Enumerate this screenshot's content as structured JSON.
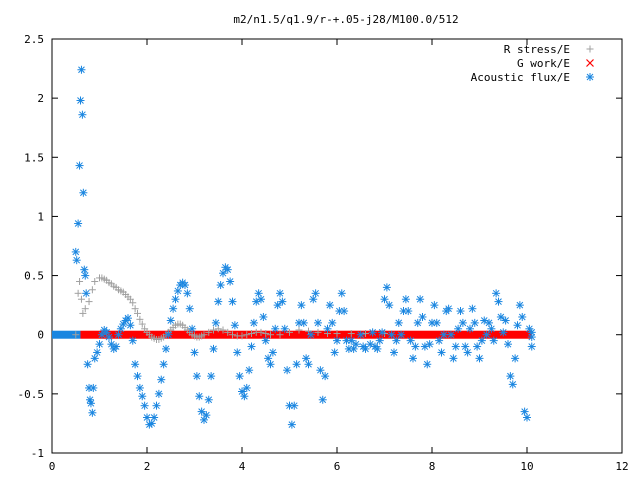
{
  "chart_data": {
    "type": "scatter",
    "title": "m2/n1.5/q1.9/r-+.05-j28/M100.0/512",
    "xlim": [
      0,
      12
    ],
    "ylim": [
      -1,
      2.5
    ],
    "x_ticks": [
      "0",
      "2",
      "4",
      "6",
      "8",
      "10",
      "12"
    ],
    "y_ticks": [
      "-1",
      "-0.5",
      "0",
      "0.5",
      "1",
      "1.5",
      "2",
      "2.5"
    ],
    "x_tick_values": [
      0,
      2,
      4,
      6,
      8,
      10,
      12
    ],
    "y_tick_values": [
      -1,
      -0.5,
      0,
      0.5,
      1,
      1.5,
      2,
      2.5
    ],
    "grid": false,
    "legend_position": "top-right",
    "series": [
      {
        "name": "R stress/E",
        "marker": "plus",
        "color": "#a0a0a0",
        "points": [
          [
            0.5,
            0.0
          ],
          [
            0.55,
            0.35
          ],
          [
            0.58,
            0.45
          ],
          [
            0.62,
            0.3
          ],
          [
            0.65,
            0.18
          ],
          [
            0.7,
            0.22
          ],
          [
            0.78,
            0.28
          ],
          [
            0.85,
            0.38
          ],
          [
            0.9,
            0.45
          ],
          [
            1.0,
            0.48
          ],
          [
            1.05,
            0.48
          ],
          [
            1.1,
            0.47
          ],
          [
            1.15,
            0.46
          ],
          [
            1.2,
            0.44
          ],
          [
            1.25,
            0.43
          ],
          [
            1.3,
            0.41
          ],
          [
            1.35,
            0.4
          ],
          [
            1.4,
            0.38
          ],
          [
            1.45,
            0.37
          ],
          [
            1.5,
            0.36
          ],
          [
            1.55,
            0.34
          ],
          [
            1.6,
            0.32
          ],
          [
            1.65,
            0.3
          ],
          [
            1.7,
            0.27
          ],
          [
            1.75,
            0.22
          ],
          [
            1.8,
            0.18
          ],
          [
            1.85,
            0.13
          ],
          [
            1.9,
            0.09
          ],
          [
            1.95,
            0.05
          ],
          [
            2.0,
            0.02
          ],
          [
            2.05,
            0.0
          ],
          [
            2.1,
            -0.02
          ],
          [
            2.15,
            -0.03
          ],
          [
            2.2,
            -0.04
          ],
          [
            2.25,
            -0.04
          ],
          [
            2.3,
            -0.03
          ],
          [
            2.35,
            -0.02
          ],
          [
            2.4,
            0.0
          ],
          [
            2.45,
            0.02
          ],
          [
            2.5,
            0.04
          ],
          [
            2.55,
            0.06
          ],
          [
            2.6,
            0.08
          ],
          [
            2.65,
            0.09
          ],
          [
            2.7,
            0.09
          ],
          [
            2.75,
            0.08
          ],
          [
            2.8,
            0.06
          ],
          [
            2.85,
            0.04
          ],
          [
            2.9,
            0.02
          ],
          [
            2.95,
            0.0
          ],
          [
            3.0,
            -0.01
          ],
          [
            3.05,
            -0.02
          ],
          [
            3.1,
            -0.02
          ],
          [
            3.15,
            -0.01
          ],
          [
            3.2,
            0.0
          ],
          [
            3.3,
            0.02
          ],
          [
            3.4,
            0.04
          ],
          [
            3.5,
            0.05
          ],
          [
            3.6,
            0.04
          ],
          [
            3.7,
            0.02
          ],
          [
            3.8,
            0.0
          ],
          [
            3.9,
            -0.01
          ],
          [
            4.0,
            -0.01
          ],
          [
            4.1,
            0.0
          ],
          [
            4.2,
            0.01
          ],
          [
            4.3,
            0.02
          ],
          [
            4.4,
            0.02
          ],
          [
            4.5,
            0.01
          ],
          [
            4.6,
            0.0
          ],
          [
            4.8,
            0.0
          ],
          [
            5.0,
            0.02
          ],
          [
            5.2,
            0.04
          ],
          [
            5.4,
            0.03
          ],
          [
            5.6,
            0.02
          ],
          [
            5.8,
            0.01
          ],
          [
            6.0,
            0.01
          ],
          [
            6.3,
            0.01
          ],
          [
            6.6,
            0.01
          ],
          [
            7.0,
            0.01
          ]
        ]
      },
      {
        "name": "G work/E",
        "marker": "cross",
        "color": "#ff0000",
        "points": []
      },
      {
        "name": "Acoustic flux/E",
        "marker": "star",
        "color": "#1a86e0",
        "points": [
          [
            0.5,
            0.7
          ],
          [
            0.52,
            0.63
          ],
          [
            0.55,
            0.94
          ],
          [
            0.58,
            1.43
          ],
          [
            0.6,
            1.98
          ],
          [
            0.62,
            2.24
          ],
          [
            0.64,
            1.86
          ],
          [
            0.66,
            1.2
          ],
          [
            0.68,
            0.55
          ],
          [
            0.7,
            0.5
          ],
          [
            0.72,
            0.35
          ],
          [
            0.75,
            -0.25
          ],
          [
            0.78,
            -0.45
          ],
          [
            0.8,
            -0.55
          ],
          [
            0.82,
            -0.58
          ],
          [
            0.85,
            -0.66
          ],
          [
            0.87,
            -0.45
          ],
          [
            0.9,
            -0.2
          ],
          [
            0.95,
            -0.15
          ],
          [
            1.0,
            -0.08
          ],
          [
            1.05,
            0.0
          ],
          [
            1.1,
            0.04
          ],
          [
            1.15,
            0.02
          ],
          [
            1.2,
            -0.02
          ],
          [
            1.25,
            -0.08
          ],
          [
            1.3,
            -0.12
          ],
          [
            1.35,
            -0.1
          ],
          [
            1.4,
            0.0
          ],
          [
            1.45,
            0.05
          ],
          [
            1.5,
            0.09
          ],
          [
            1.55,
            0.12
          ],
          [
            1.6,
            0.14
          ],
          [
            1.65,
            0.08
          ],
          [
            1.7,
            -0.05
          ],
          [
            1.75,
            -0.25
          ],
          [
            1.8,
            -0.35
          ],
          [
            1.85,
            -0.45
          ],
          [
            1.9,
            -0.52
          ],
          [
            1.95,
            -0.6
          ],
          [
            2.0,
            -0.7
          ],
          [
            2.05,
            -0.76
          ],
          [
            2.1,
            -0.75
          ],
          [
            2.15,
            -0.7
          ],
          [
            2.2,
            -0.6
          ],
          [
            2.25,
            -0.5
          ],
          [
            2.3,
            -0.38
          ],
          [
            2.35,
            -0.25
          ],
          [
            2.4,
            -0.12
          ],
          [
            2.45,
            0.0
          ],
          [
            2.5,
            0.12
          ],
          [
            2.55,
            0.22
          ],
          [
            2.6,
            0.3
          ],
          [
            2.65,
            0.37
          ],
          [
            2.7,
            0.42
          ],
          [
            2.75,
            0.44
          ],
          [
            2.8,
            0.42
          ],
          [
            2.85,
            0.35
          ],
          [
            2.9,
            0.22
          ],
          [
            2.95,
            0.05
          ],
          [
            3.0,
            -0.15
          ],
          [
            3.05,
            -0.35
          ],
          [
            3.1,
            -0.52
          ],
          [
            3.15,
            -0.65
          ],
          [
            3.2,
            -0.72
          ],
          [
            3.25,
            -0.68
          ],
          [
            3.3,
            -0.55
          ],
          [
            3.35,
            -0.35
          ],
          [
            3.4,
            -0.12
          ],
          [
            3.45,
            0.1
          ],
          [
            3.5,
            0.28
          ],
          [
            3.55,
            0.42
          ],
          [
            3.6,
            0.52
          ],
          [
            3.65,
            0.57
          ],
          [
            3.7,
            0.55
          ],
          [
            3.75,
            0.45
          ],
          [
            3.8,
            0.28
          ],
          [
            3.85,
            0.08
          ],
          [
            3.9,
            -0.15
          ],
          [
            3.95,
            -0.35
          ],
          [
            4.0,
            -0.48
          ],
          [
            4.05,
            -0.52
          ],
          [
            4.1,
            -0.45
          ],
          [
            4.15,
            -0.3
          ],
          [
            4.2,
            -0.1
          ],
          [
            4.25,
            0.1
          ],
          [
            4.3,
            0.28
          ],
          [
            4.35,
            0.35
          ],
          [
            4.4,
            0.3
          ],
          [
            4.45,
            0.15
          ],
          [
            4.5,
            -0.05
          ],
          [
            4.55,
            -0.2
          ],
          [
            4.6,
            -0.25
          ],
          [
            4.65,
            -0.15
          ],
          [
            4.7,
            0.05
          ],
          [
            4.75,
            0.25
          ],
          [
            4.8,
            0.35
          ],
          [
            4.85,
            0.28
          ],
          [
            4.9,
            0.05
          ],
          [
            4.95,
            -0.3
          ],
          [
            5.0,
            -0.6
          ],
          [
            5.05,
            -0.76
          ],
          [
            5.1,
            -0.6
          ],
          [
            5.15,
            -0.25
          ],
          [
            5.2,
            0.1
          ],
          [
            5.25,
            0.25
          ],
          [
            5.3,
            0.1
          ],
          [
            5.35,
            -0.2
          ],
          [
            5.4,
            -0.25
          ],
          [
            5.45,
            0.0
          ],
          [
            5.5,
            0.3
          ],
          [
            5.55,
            0.35
          ],
          [
            5.6,
            0.1
          ],
          [
            5.65,
            -0.3
          ],
          [
            5.7,
            -0.55
          ],
          [
            5.75,
            -0.35
          ],
          [
            5.8,
            0.05
          ],
          [
            5.85,
            0.25
          ],
          [
            5.9,
            0.1
          ],
          [
            5.95,
            -0.15
          ],
          [
            6.0,
            -0.05
          ],
          [
            6.05,
            0.2
          ],
          [
            6.1,
            0.35
          ],
          [
            6.15,
            0.2
          ],
          [
            6.2,
            -0.05
          ],
          [
            6.25,
            -0.12
          ],
          [
            6.3,
            -0.05
          ],
          [
            6.35,
            -0.12
          ],
          [
            6.4,
            -0.08
          ],
          [
            6.5,
            0.0
          ],
          [
            6.55,
            -0.1
          ],
          [
            6.6,
            -0.12
          ],
          [
            6.7,
            -0.08
          ],
          [
            6.75,
            0.02
          ],
          [
            6.8,
            -0.1
          ],
          [
            6.85,
            -0.12
          ],
          [
            6.9,
            -0.05
          ],
          [
            6.95,
            0.02
          ],
          [
            7.0,
            0.3
          ],
          [
            7.05,
            0.4
          ],
          [
            7.1,
            0.25
          ],
          [
            7.15,
            0.0
          ],
          [
            7.2,
            -0.15
          ],
          [
            7.25,
            -0.05
          ],
          [
            7.3,
            0.1
          ],
          [
            7.35,
            0.0
          ],
          [
            7.4,
            0.2
          ],
          [
            7.45,
            0.3
          ],
          [
            7.5,
            0.2
          ],
          [
            7.55,
            -0.05
          ],
          [
            7.6,
            -0.2
          ],
          [
            7.65,
            -0.1
          ],
          [
            7.7,
            0.1
          ],
          [
            7.75,
            0.3
          ],
          [
            7.8,
            0.15
          ],
          [
            7.85,
            -0.1
          ],
          [
            7.9,
            -0.25
          ],
          [
            7.95,
            -0.08
          ],
          [
            8.0,
            0.1
          ],
          [
            8.05,
            0.25
          ],
          [
            8.1,
            0.1
          ],
          [
            8.15,
            -0.05
          ],
          [
            8.2,
            -0.15
          ],
          [
            8.25,
            0.0
          ],
          [
            8.3,
            0.2
          ],
          [
            8.35,
            0.22
          ],
          [
            8.4,
            0.0
          ],
          [
            8.45,
            -0.2
          ],
          [
            8.5,
            -0.1
          ],
          [
            8.55,
            0.05
          ],
          [
            8.6,
            0.2
          ],
          [
            8.65,
            0.1
          ],
          [
            8.7,
            -0.1
          ],
          [
            8.75,
            -0.15
          ],
          [
            8.8,
            0.05
          ],
          [
            8.85,
            0.22
          ],
          [
            8.9,
            0.1
          ],
          [
            8.95,
            -0.1
          ],
          [
            9.0,
            -0.2
          ],
          [
            9.05,
            -0.05
          ],
          [
            9.1,
            0.12
          ],
          [
            9.15,
            0.0
          ],
          [
            9.2,
            0.1
          ],
          [
            9.25,
            0.05
          ],
          [
            9.3,
            -0.05
          ],
          [
            9.35,
            0.35
          ],
          [
            9.4,
            0.28
          ],
          [
            9.45,
            0.15
          ],
          [
            9.5,
            0.02
          ],
          [
            9.55,
            0.12
          ],
          [
            9.6,
            -0.08
          ],
          [
            9.65,
            -0.35
          ],
          [
            9.7,
            -0.42
          ],
          [
            9.75,
            -0.2
          ],
          [
            9.8,
            0.08
          ],
          [
            9.85,
            0.25
          ],
          [
            9.9,
            0.15
          ],
          [
            9.95,
            -0.65
          ],
          [
            10.0,
            -0.7
          ],
          [
            10.05,
            0.05
          ],
          [
            10.1,
            0.02
          ],
          [
            10.1,
            -0.1
          ],
          [
            10.1,
            -0.02
          ]
        ]
      }
    ]
  }
}
